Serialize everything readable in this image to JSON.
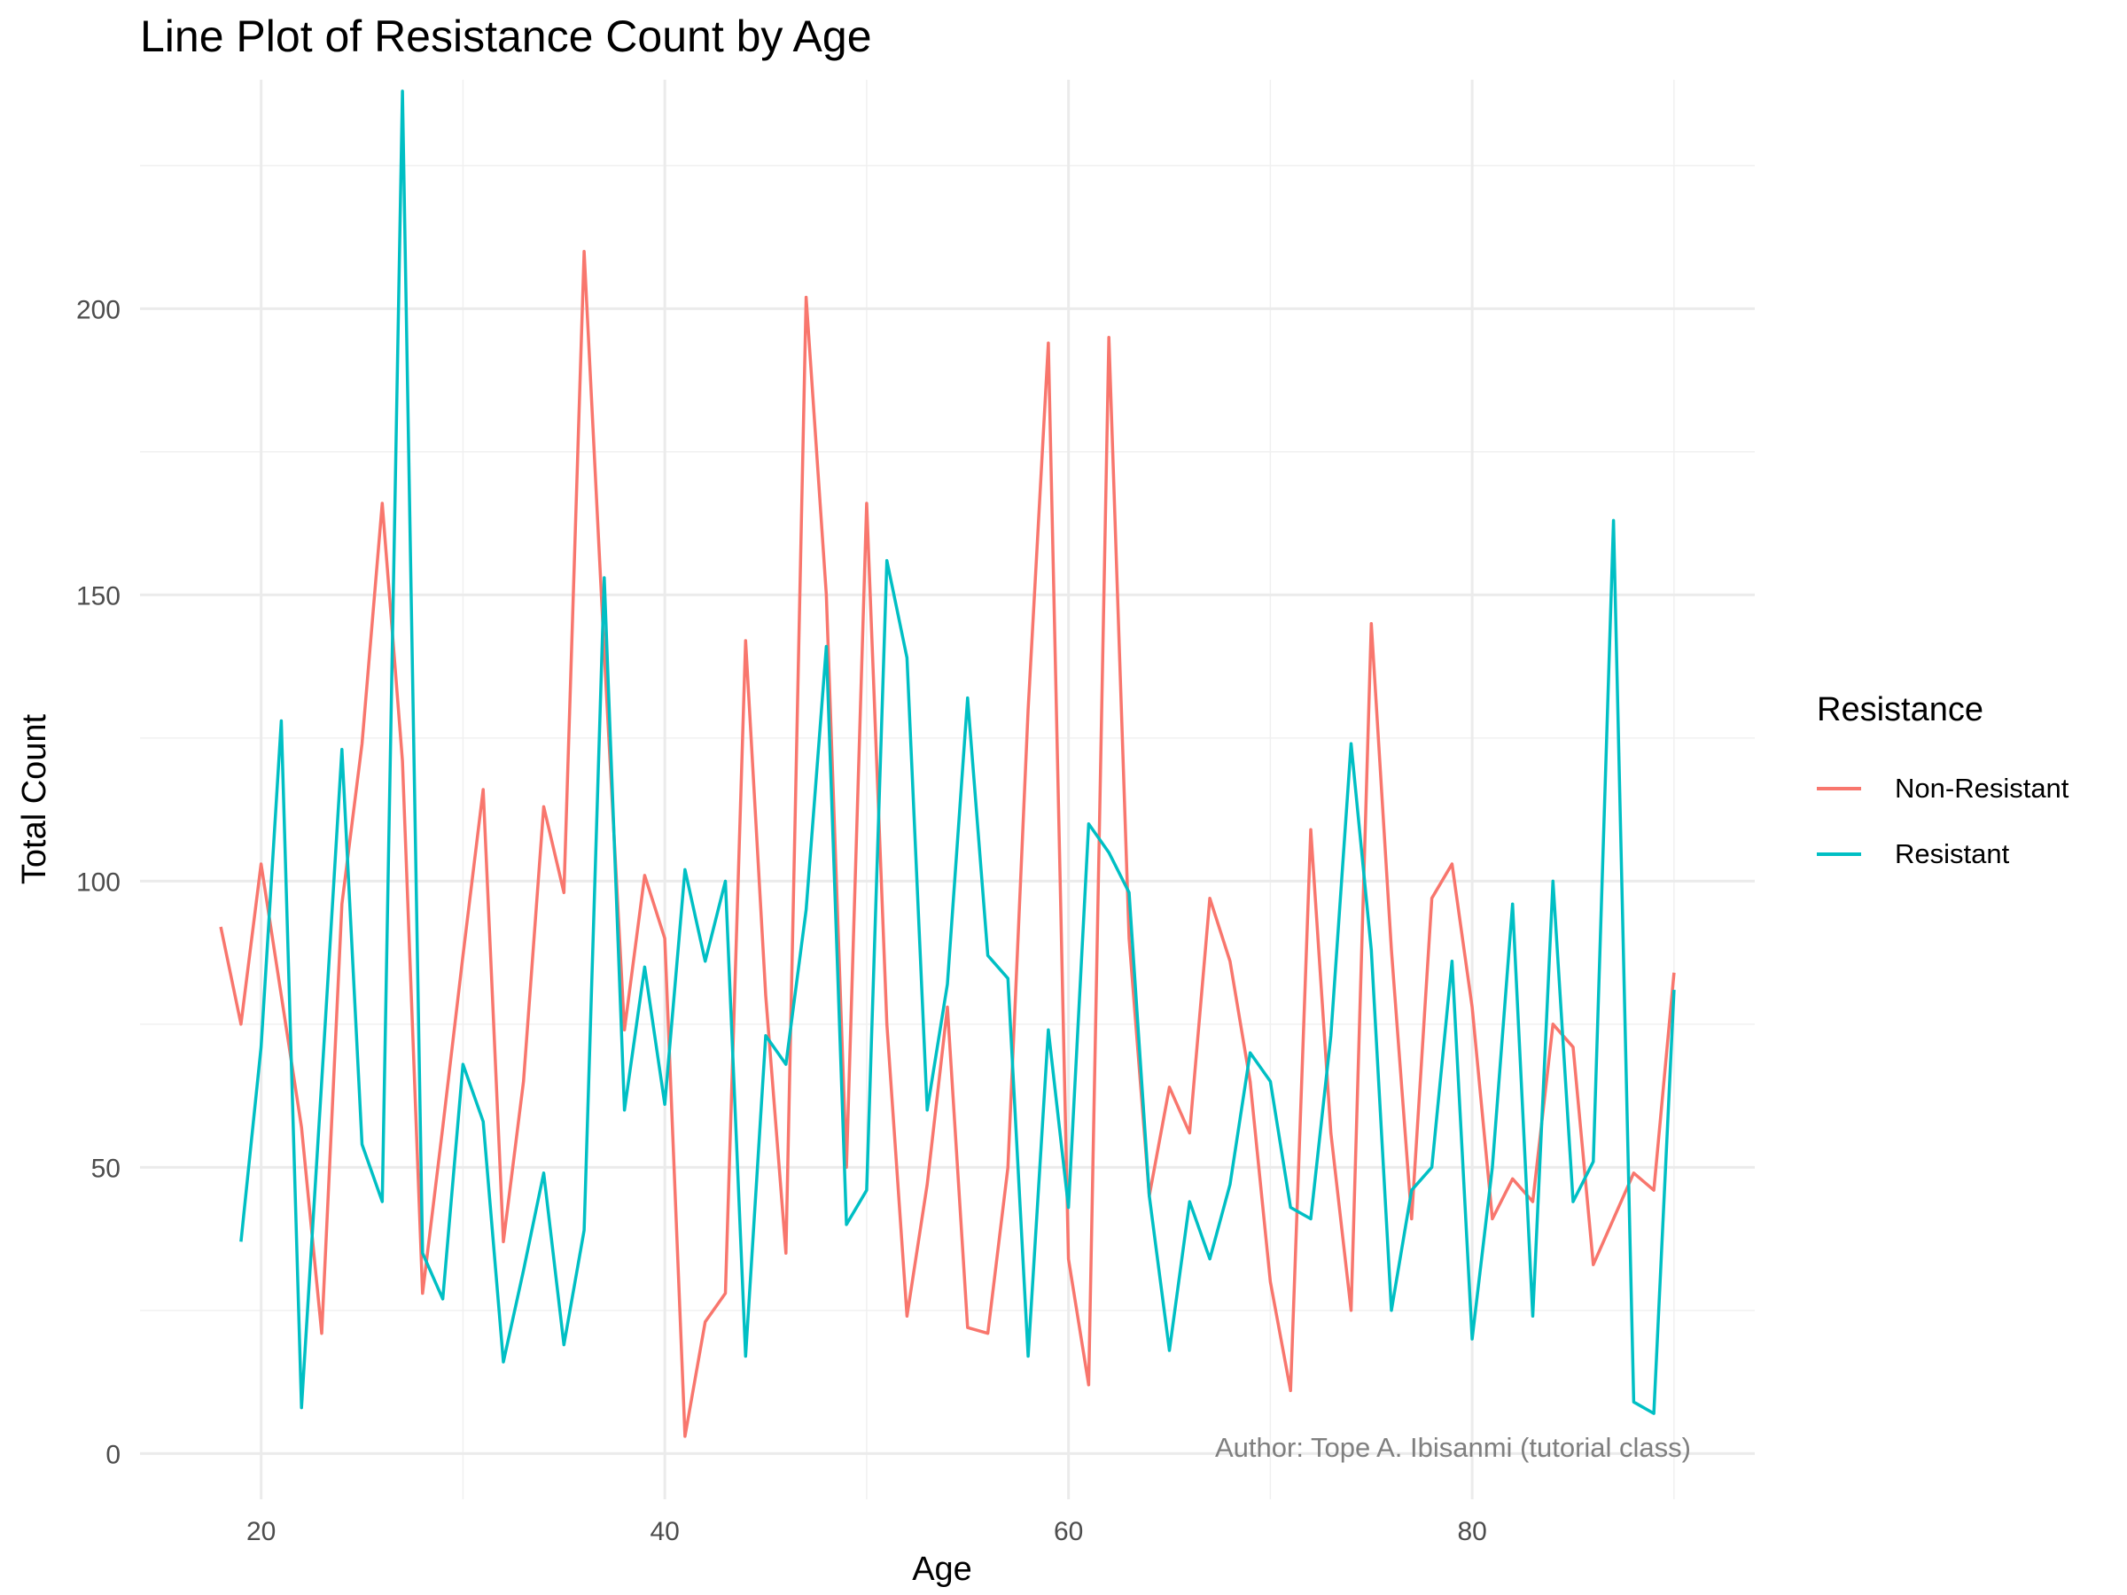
{
  "chart_data": {
    "type": "line",
    "title": "Line Plot of Resistance Count by Age",
    "xlabel": "Age",
    "ylabel": "Total Count",
    "xlim": [
      14,
      94
    ],
    "ylim": [
      -8,
      240
    ],
    "x_ticks": [
      20,
      40,
      60,
      80
    ],
    "y_ticks": [
      0,
      50,
      100,
      150,
      200
    ],
    "grid": true,
    "legend_title": "Resistance",
    "legend_position": "right",
    "annotation": "Author: Tope A. Ibisanmi (tutorial class)",
    "series": [
      {
        "name": "Non-Resistant",
        "color": "#F8766D",
        "x": [
          18,
          19,
          20,
          21,
          22,
          23,
          24,
          25,
          26,
          27,
          28,
          29,
          30,
          31,
          32,
          33,
          34,
          35,
          36,
          37,
          38,
          39,
          40,
          41,
          42,
          43,
          44,
          45,
          46,
          47,
          48,
          49,
          50,
          51,
          52,
          53,
          54,
          55,
          56,
          57,
          58,
          59,
          60,
          61,
          62,
          63,
          64,
          65,
          66,
          67,
          68,
          69,
          70,
          71,
          72,
          73,
          74,
          75,
          76,
          77,
          78,
          79,
          80,
          81,
          82,
          83,
          84,
          85,
          86,
          87,
          88,
          89,
          90
        ],
        "y": [
          92,
          75,
          103,
          80,
          57,
          21,
          96,
          124,
          166,
          121,
          28,
          57,
          87,
          116,
          37,
          65,
          113,
          98,
          210,
          140,
          74,
          101,
          90,
          3,
          23,
          28,
          142,
          80,
          35,
          202,
          150,
          50,
          166,
          75,
          24,
          47,
          78,
          22,
          21,
          50,
          130,
          194,
          34,
          12,
          195,
          90,
          45,
          64,
          56,
          97,
          86,
          65,
          30,
          11,
          109,
          56,
          25,
          145,
          88,
          41,
          97,
          103,
          78,
          41,
          48,
          44,
          75,
          71,
          33,
          41,
          49,
          46,
          84
        ]
      },
      {
        "name": "Resistant",
        "color": "#00BFC4",
        "x": [
          19,
          20,
          21,
          22,
          23,
          24,
          25,
          26,
          27,
          28,
          29,
          30,
          31,
          32,
          33,
          34,
          35,
          36,
          37,
          38,
          39,
          40,
          41,
          42,
          43,
          44,
          45,
          46,
          47,
          48,
          49,
          50,
          51,
          52,
          53,
          54,
          55,
          56,
          57,
          58,
          59,
          60,
          61,
          62,
          63,
          64,
          65,
          66,
          67,
          68,
          69,
          70,
          71,
          72,
          73,
          74,
          75,
          76,
          77,
          78,
          79,
          80,
          81,
          82,
          83,
          84,
          85,
          86,
          87,
          88,
          89,
          90
        ],
        "y": [
          37,
          71,
          128,
          8,
          65,
          123,
          54,
          44,
          238,
          35,
          27,
          68,
          58,
          16,
          32,
          49,
          19,
          39,
          153,
          60,
          85,
          61,
          102,
          86,
          100,
          17,
          73,
          68,
          95,
          141,
          40,
          46,
          156,
          139,
          60,
          82,
          132,
          87,
          83,
          17,
          74,
          43,
          110,
          105,
          98,
          45,
          18,
          44,
          34,
          47,
          70,
          65,
          43,
          41,
          73,
          124,
          88,
          25,
          46,
          50,
          86,
          20,
          50,
          96,
          24,
          100,
          44,
          51,
          163,
          9,
          7,
          81
        ]
      }
    ]
  }
}
